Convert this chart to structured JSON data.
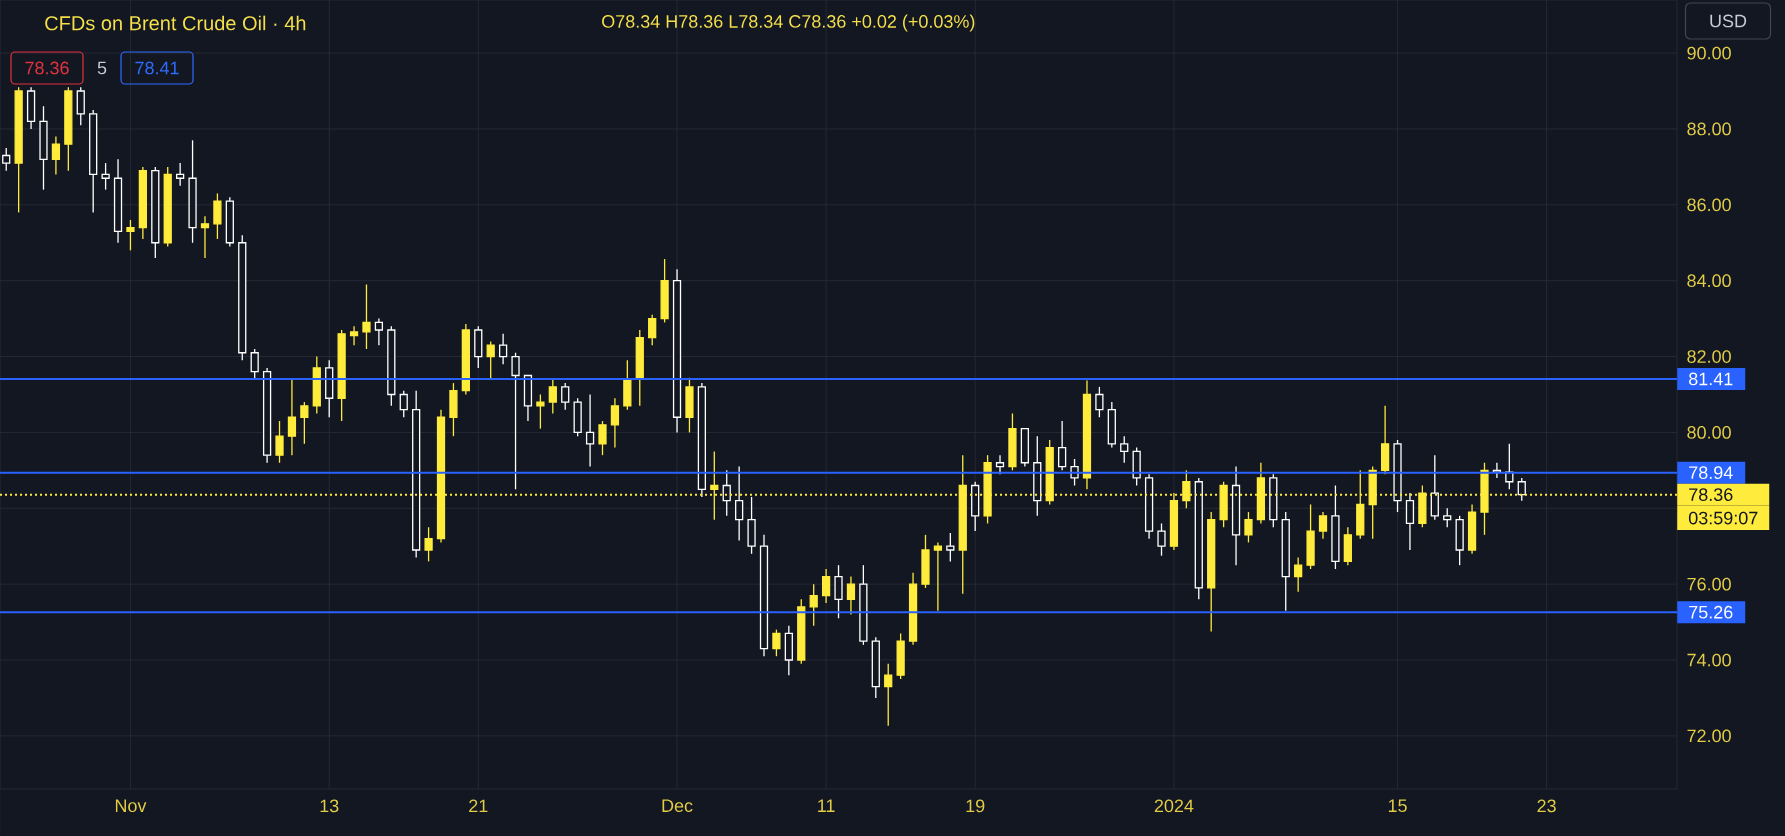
{
  "chart_data": {
    "type": "candlestick",
    "title": "CFDs on Brent Crude Oil · 4h",
    "categories": [
      null,
      null,
      null,
      null,
      null,
      null,
      null,
      null,
      null,
      null,
      "Nov",
      null,
      null,
      null,
      null,
      null,
      null,
      null,
      null,
      null,
      null,
      null,
      null,
      null,
      null,
      null,
      "13",
      null,
      null,
      null,
      null,
      null,
      null,
      null,
      null,
      null,
      null,
      null,
      "21",
      null,
      null,
      null,
      null,
      null,
      null,
      null,
      null,
      null,
      null,
      null,
      null,
      null,
      null,
      null,
      "Dec",
      null,
      null,
      null,
      null,
      null,
      null,
      null,
      null,
      null,
      null,
      null,
      "11",
      null,
      null,
      null,
      null,
      null,
      null,
      null,
      null,
      null,
      null,
      null,
      "19",
      null,
      null,
      null,
      null,
      null,
      null,
      null,
      null,
      null,
      null,
      null,
      null,
      null,
      null,
      null,
      "2024",
      null,
      null,
      null,
      null,
      null,
      null,
      null,
      null,
      null,
      null,
      null,
      null,
      null,
      null,
      null,
      null,
      null,
      "15",
      null,
      null,
      null,
      null,
      null,
      null,
      null,
      null,
      null,
      null,
      null,
      "23",
      null,
      null,
      null,
      null,
      null,
      null,
      null,
      null,
      null,
      null
    ],
    "ohlc": [
      [
        87.3,
        87.5,
        86.9,
        87.1
      ],
      [
        87.1,
        89.1,
        85.8,
        89.0
      ],
      [
        89.0,
        89.1,
        88.0,
        88.2
      ],
      [
        88.2,
        88.6,
        86.4,
        87.2
      ],
      [
        87.2,
        87.8,
        86.8,
        87.6
      ],
      [
        87.6,
        89.1,
        86.9,
        89.0
      ],
      [
        89.0,
        89.1,
        88.1,
        88.4
      ],
      [
        88.4,
        88.5,
        85.8,
        86.8
      ],
      [
        86.8,
        87.1,
        86.4,
        86.7
      ],
      [
        86.7,
        87.2,
        85.0,
        85.3
      ],
      [
        85.3,
        85.6,
        84.8,
        85.4
      ],
      [
        85.4,
        87.0,
        85.1,
        86.9
      ],
      [
        86.9,
        87.0,
        84.6,
        85.0
      ],
      [
        85.0,
        87.0,
        84.9,
        86.8
      ],
      [
        86.8,
        87.1,
        86.5,
        86.7
      ],
      [
        86.7,
        87.7,
        85.0,
        85.4
      ],
      [
        85.4,
        85.7,
        84.6,
        85.5
      ],
      [
        85.5,
        86.3,
        85.1,
        86.1
      ],
      [
        86.1,
        86.2,
        84.9,
        85.0
      ],
      [
        85.0,
        85.2,
        81.9,
        82.1
      ],
      [
        82.1,
        82.2,
        81.4,
        81.6
      ],
      [
        81.6,
        81.7,
        79.2,
        79.4
      ],
      [
        79.4,
        80.3,
        79.2,
        79.9
      ],
      [
        79.9,
        81.4,
        79.4,
        80.4
      ],
      [
        80.4,
        80.8,
        79.7,
        80.7
      ],
      [
        80.7,
        82.0,
        80.5,
        81.7
      ],
      [
        81.7,
        81.9,
        80.4,
        80.9
      ],
      [
        80.9,
        82.7,
        80.3,
        82.6
      ],
      [
        82.55,
        82.8,
        82.3,
        82.65
      ],
      [
        82.65,
        83.9,
        82.2,
        82.9
      ],
      [
        82.9,
        83.0,
        82.3,
        82.7
      ],
      [
        82.7,
        82.8,
        80.7,
        81.0
      ],
      [
        81.0,
        81.1,
        80.4,
        80.6
      ],
      [
        80.6,
        81.1,
        76.7,
        76.9
      ],
      [
        76.9,
        77.5,
        76.6,
        77.2
      ],
      [
        77.2,
        80.6,
        77.1,
        80.4
      ],
      [
        80.4,
        81.3,
        79.9,
        81.1
      ],
      [
        81.1,
        82.86,
        81.0,
        82.7
      ],
      [
        82.7,
        82.8,
        81.7,
        82.0
      ],
      [
        82.0,
        82.4,
        81.4,
        82.3
      ],
      [
        82.3,
        82.6,
        81.8,
        82.0
      ],
      [
        82.0,
        82.1,
        78.5,
        81.5
      ],
      [
        81.5,
        81.5,
        80.3,
        80.7
      ],
      [
        80.7,
        81.0,
        80.1,
        80.8
      ],
      [
        80.8,
        81.4,
        80.5,
        81.2
      ],
      [
        81.2,
        81.3,
        80.6,
        80.8
      ],
      [
        80.8,
        80.9,
        79.9,
        80.0
      ],
      [
        80.0,
        81.0,
        79.1,
        79.7
      ],
      [
        79.7,
        80.3,
        79.4,
        80.2
      ],
      [
        80.2,
        80.9,
        79.6,
        80.7
      ],
      [
        80.7,
        81.9,
        80.6,
        81.4
      ],
      [
        81.4,
        82.7,
        80.7,
        82.5
      ],
      [
        82.5,
        83.1,
        82.3,
        83.0
      ],
      [
        83.0,
        84.57,
        82.9,
        84.0
      ],
      [
        84.0,
        84.3,
        80.0,
        80.4
      ],
      [
        80.4,
        81.44,
        80.0,
        81.2
      ],
      [
        81.2,
        81.3,
        78.3,
        78.5
      ],
      [
        78.5,
        79.5,
        77.7,
        78.6
      ],
      [
        78.6,
        79.0,
        77.8,
        78.2
      ],
      [
        78.2,
        79.1,
        77.15,
        77.7
      ],
      [
        77.7,
        78.3,
        76.8,
        77.0
      ],
      [
        77.0,
        77.3,
        74.1,
        74.3
      ],
      [
        74.3,
        74.8,
        74.1,
        74.7
      ],
      [
        74.7,
        74.9,
        73.6,
        74.0
      ],
      [
        74.0,
        75.6,
        73.9,
        75.4
      ],
      [
        75.4,
        76.0,
        74.9,
        75.7
      ],
      [
        75.7,
        76.4,
        75.5,
        76.2
      ],
      [
        76.2,
        76.5,
        75.1,
        75.6
      ],
      [
        75.6,
        76.2,
        75.2,
        76.0
      ],
      [
        76.0,
        76.5,
        74.4,
        74.5
      ],
      [
        74.5,
        74.6,
        73.0,
        73.3
      ],
      [
        73.3,
        73.9,
        72.27,
        73.6
      ],
      [
        73.6,
        74.7,
        73.5,
        74.5
      ],
      [
        74.5,
        76.3,
        74.4,
        76.0
      ],
      [
        76.0,
        77.3,
        75.9,
        76.9
      ],
      [
        76.9,
        77.1,
        75.3,
        77.0
      ],
      [
        77.0,
        77.35,
        76.6,
        76.9
      ],
      [
        76.9,
        79.4,
        75.75,
        78.6
      ],
      [
        78.6,
        78.7,
        77.4,
        77.8
      ],
      [
        77.8,
        79.4,
        77.6,
        79.2
      ],
      [
        79.2,
        79.4,
        78.9,
        79.1
      ],
      [
        79.1,
        80.5,
        79.0,
        80.1
      ],
      [
        80.1,
        80.1,
        79.1,
        79.2
      ],
      [
        79.2,
        79.9,
        77.8,
        78.2
      ],
      [
        78.2,
        79.8,
        78.1,
        79.6
      ],
      [
        79.6,
        80.3,
        79.0,
        79.1
      ],
      [
        79.1,
        79.3,
        78.6,
        78.8
      ],
      [
        78.8,
        81.37,
        78.5,
        81.0
      ],
      [
        81.0,
        81.2,
        80.4,
        80.6
      ],
      [
        80.6,
        80.8,
        79.6,
        79.7
      ],
      [
        79.7,
        79.9,
        79.2,
        79.5
      ],
      [
        79.5,
        79.6,
        78.6,
        78.8
      ],
      [
        78.8,
        78.9,
        77.2,
        77.4
      ],
      [
        77.4,
        77.6,
        76.75,
        77.0
      ],
      [
        77.0,
        78.4,
        76.9,
        78.2
      ],
      [
        78.2,
        79.0,
        78.0,
        78.7
      ],
      [
        78.7,
        78.8,
        75.6,
        75.9
      ],
      [
        75.9,
        77.9,
        74.75,
        77.7
      ],
      [
        77.7,
        78.7,
        77.5,
        78.6
      ],
      [
        78.6,
        79.1,
        76.5,
        77.3
      ],
      [
        77.3,
        77.9,
        77.1,
        77.7
      ],
      [
        77.7,
        79.2,
        77.6,
        78.8
      ],
      [
        78.8,
        78.9,
        77.5,
        77.7
      ],
      [
        77.7,
        77.9,
        75.3,
        76.2
      ],
      [
        76.2,
        76.7,
        75.8,
        76.5
      ],
      [
        76.5,
        78.1,
        76.4,
        77.4
      ],
      [
        77.4,
        77.9,
        77.2,
        77.8
      ],
      [
        77.8,
        78.6,
        76.4,
        76.6
      ],
      [
        76.6,
        77.5,
        76.5,
        77.3
      ],
      [
        77.3,
        79.0,
        77.2,
        78.1
      ],
      [
        78.1,
        79.1,
        77.2,
        79.0
      ],
      [
        79.0,
        80.7,
        78.9,
        79.7
      ],
      [
        79.7,
        79.8,
        77.9,
        78.2
      ],
      [
        78.2,
        78.4,
        76.9,
        77.6
      ],
      [
        77.6,
        78.6,
        77.5,
        78.4
      ],
      [
        78.4,
        79.4,
        77.7,
        77.8
      ],
      [
        77.8,
        78.0,
        77.5,
        77.7
      ],
      [
        77.7,
        77.8,
        76.5,
        76.9
      ],
      [
        76.9,
        78.1,
        76.8,
        77.9
      ],
      [
        77.9,
        79.2,
        77.3,
        79.0
      ],
      [
        79.0,
        79.2,
        78.8,
        78.95
      ],
      [
        78.95,
        79.7,
        78.5,
        78.7
      ],
      [
        78.7,
        78.8,
        78.2,
        78.36
      ],
      null,
      null,
      null,
      null,
      null,
      null,
      null,
      null,
      null,
      null,
      null,
      null
    ],
    "colors": [
      "#ffffff",
      "#ffeb3b",
      "#ffffff",
      "#ffffff",
      "#ffeb3b",
      "#ffeb3b",
      "#ffffff",
      "#ffffff",
      "#ffffff",
      "#ffffff",
      "#ffeb3b",
      "#ffeb3b",
      "#ffffff",
      "#ffeb3b",
      "#ffffff",
      "#ffffff",
      "#ffeb3b",
      "#ffeb3b",
      "#ffffff",
      "#ffffff",
      "#ffffff",
      "#ffffff",
      "#ffeb3b",
      "#ffeb3b",
      "#ffeb3b",
      "#ffeb3b",
      "#ffffff",
      "#ffeb3b",
      "#ffeb3b",
      "#ffeb3b",
      "#ffffff",
      "#ffffff",
      "#ffffff",
      "#ffffff",
      "#ffeb3b",
      "#ffeb3b",
      "#ffeb3b",
      "#ffeb3b",
      "#ffffff",
      "#ffeb3b",
      "#ffffff",
      "#ffffff",
      "#ffffff",
      "#ffeb3b",
      "#ffeb3b",
      "#ffffff",
      "#ffffff",
      "#ffffff",
      "#ffeb3b",
      "#ffeb3b",
      "#ffeb3b",
      "#ffeb3b",
      "#ffeb3b",
      "#ffeb3b",
      "#ffffff",
      "#ffeb3b",
      "#ffffff",
      "#ffeb3b",
      "#ffffff",
      "#ffffff",
      "#ffffff",
      "#ffffff",
      "#ffeb3b",
      "#ffffff",
      "#ffeb3b",
      "#ffeb3b",
      "#ffeb3b",
      "#ffffff",
      "#ffeb3b",
      "#ffffff",
      "#ffffff",
      "#ffeb3b",
      "#ffeb3b",
      "#ffeb3b",
      "#ffeb3b",
      "#ffeb3b",
      "#ffffff",
      "#ffeb3b",
      "#ffffff",
      "#ffeb3b",
      "#ffffff",
      "#ffeb3b",
      "#ffffff",
      "#ffffff",
      "#ffeb3b",
      "#ffffff",
      "#ffffff",
      "#ffeb3b",
      "#ffffff",
      "#ffffff",
      "#ffffff",
      "#ffffff",
      "#ffffff",
      "#ffffff",
      "#ffeb3b",
      "#ffeb3b",
      "#ffffff",
      "#ffeb3b",
      "#ffeb3b",
      "#ffffff",
      "#ffeb3b",
      "#ffeb3b",
      "#ffffff",
      "#ffffff",
      "#ffeb3b",
      "#ffeb3b",
      "#ffeb3b",
      "#ffffff",
      "#ffeb3b",
      "#ffeb3b",
      "#ffeb3b",
      "#ffeb3b",
      "#ffffff",
      "#ffffff",
      "#ffeb3b",
      "#ffffff",
      "#ffffff",
      "#ffffff",
      "#ffeb3b",
      "#ffeb3b",
      "#ffffff",
      "#ffffff",
      "#ffffff",
      null,
      null,
      null,
      null,
      null,
      null,
      null,
      null,
      null,
      null,
      null,
      null
    ],
    "ylim": [
      70.6,
      91.4
    ],
    "yticks": [
      {
        "value": 72,
        "label": "72.00"
      },
      {
        "value": 74,
        "label": "74.00"
      },
      {
        "value": 76,
        "label": "76.00"
      },
      {
        "value": 78,
        "label": null
      },
      {
        "value": 80,
        "label": "80.00"
      },
      {
        "value": 82,
        "label": "82.00"
      },
      {
        "value": 84,
        "label": "84.00"
      },
      {
        "value": 86,
        "label": "86.00"
      },
      {
        "value": 88,
        "label": "88.00"
      },
      {
        "value": 90,
        "label": "90.00"
      }
    ],
    "ref_lines": [
      {
        "axis": "y",
        "value": 81.41,
        "label": "81.41",
        "color": "#2962ff"
      },
      {
        "axis": "y",
        "value": 78.94,
        "label": "78.94",
        "color": "#2962ff"
      },
      {
        "axis": "y",
        "value": 75.26,
        "label": "75.26",
        "color": "#2962ff"
      },
      {
        "axis": "y",
        "value": 78.36,
        "label": "78.36",
        "color": "#ffeb3b",
        "line_style": "dotted"
      }
    ],
    "annotations": [
      "O78.34 H78.36 L78.34 C78.36 +0.02 (+0.03%)",
      "78.36",
      "5",
      "78.41",
      "USD",
      "03:59:07"
    ],
    "grid": true
  }
}
